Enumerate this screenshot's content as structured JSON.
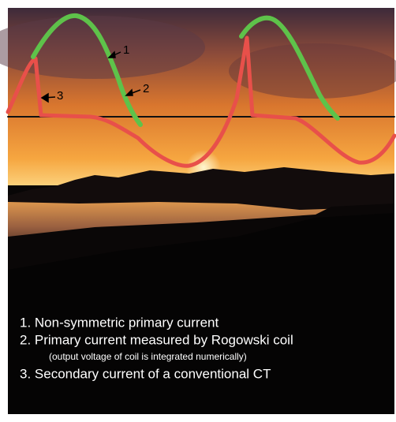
{
  "curve_labels": [
    "1",
    "2",
    "3"
  ],
  "legend": {
    "items": [
      "1. Non-symmetric primary current",
      "2. Primary current measured by Rogowski coil",
      "3. Secondary current of a conventional CT"
    ],
    "note": "(output voltage of coil is integrated numerically)"
  }
}
